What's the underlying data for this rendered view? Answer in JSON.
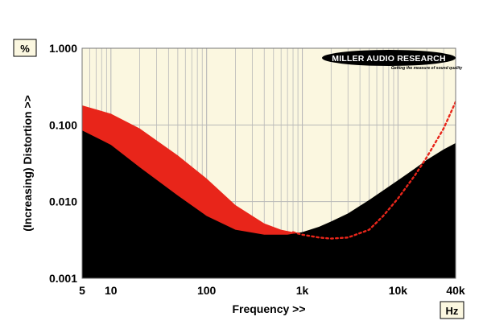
{
  "chart_data": {
    "type": "area",
    "xscale": "log",
    "yscale": "log",
    "xlim": [
      5,
      40000
    ],
    "ylim": [
      0.001,
      1.0
    ],
    "xlabel": "Frequency >>",
    "ylabel": "(Increasing) Distortion >>",
    "x_unit": "Hz",
    "y_unit": "%",
    "x_ticks": [
      {
        "value": 5,
        "label": "5"
      },
      {
        "value": 10,
        "label": "10"
      },
      {
        "value": 100,
        "label": "100"
      },
      {
        "value": 1000,
        "label": "1k"
      },
      {
        "value": 10000,
        "label": "10k"
      },
      {
        "value": 40000,
        "label": "40k"
      }
    ],
    "y_ticks": [
      {
        "value": 0.001,
        "label": "0.001"
      },
      {
        "value": 0.01,
        "label": "0.010"
      },
      {
        "value": 0.1,
        "label": "0.100"
      },
      {
        "value": 1.0,
        "label": "1.000"
      }
    ],
    "grid": true,
    "series": [
      {
        "color": "#e8251a",
        "style": "filled",
        "x": [
          5,
          10,
          20,
          50,
          100,
          200,
          400,
          600,
          800,
          1000
        ],
        "y": [
          0.18,
          0.14,
          0.09,
          0.04,
          0.02,
          0.009,
          0.0052,
          0.0043,
          0.004,
          0.0039
        ]
      },
      {
        "color": "#000000",
        "style": "filled",
        "x": [
          5,
          10,
          20,
          50,
          100,
          200,
          400,
          700,
          1000,
          1500,
          2000,
          3000,
          5000,
          7000,
          10000,
          15000,
          20000,
          30000,
          40000
        ],
        "y": [
          0.085,
          0.055,
          0.028,
          0.012,
          0.0065,
          0.0043,
          0.0037,
          0.0037,
          0.004,
          0.0047,
          0.0055,
          0.007,
          0.0105,
          0.014,
          0.019,
          0.027,
          0.035,
          0.048,
          0.058
        ]
      },
      {
        "color": "#e8251a",
        "style": "dotted",
        "x": [
          800,
          1000,
          1500,
          2000,
          3000,
          5000,
          7000,
          10000,
          15000,
          20000,
          30000,
          40000
        ],
        "y": [
          0.004,
          0.0037,
          0.0034,
          0.0033,
          0.0034,
          0.0043,
          0.0065,
          0.011,
          0.022,
          0.038,
          0.09,
          0.2
        ]
      }
    ]
  },
  "logo": {
    "main": "MILLER AUDIO RESEARCH",
    "tagline": "Getting the measure of sound quality"
  },
  "colors": {
    "plot_background": "#fbf7e0",
    "grid": "#b8b8b8",
    "red": "#e8251a",
    "black": "#000000"
  }
}
